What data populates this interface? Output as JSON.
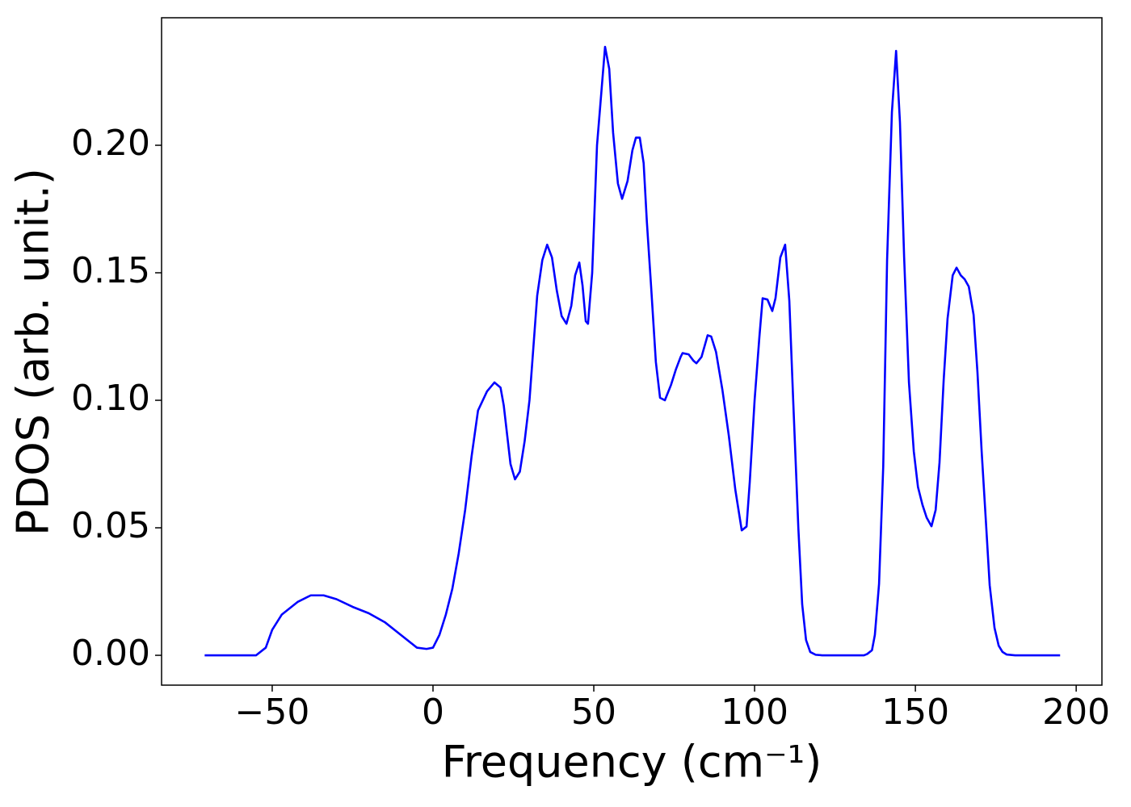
{
  "chart_data": {
    "type": "line",
    "xlabel": "Frequency (cm⁻¹)",
    "ylabel": "PDOS (arb. unit.)",
    "xlim": [
      -84.4,
      208.0
    ],
    "ylim": [
      -0.0117,
      0.25
    ],
    "xticks": [
      {
        "value": -50,
        "label": "−50"
      },
      0,
      50,
      100,
      150,
      200
    ],
    "yticks": [
      {
        "value": 0,
        "label": "0.00"
      },
      {
        "value": 0.05,
        "label": "0.05"
      },
      {
        "value": 0.1,
        "label": "0.10"
      },
      {
        "value": 0.15,
        "label": "0.15"
      },
      {
        "value": 0.2,
        "label": "0.20"
      }
    ],
    "grid": false,
    "series": [
      {
        "name": "PDOS",
        "color": "#0000ff",
        "x": [
          -71,
          -55,
          -52,
          -50,
          -47,
          -42,
          -38,
          -34,
          -30,
          -25,
          -20,
          -15,
          -10,
          -5,
          -2,
          0,
          2,
          4,
          6,
          8,
          10,
          12,
          14,
          16.8,
          19.1,
          21,
          22,
          24.1,
          25.5,
          27,
          28.5,
          30,
          32.4,
          34,
          35.5,
          37,
          38.5,
          40,
          41.5,
          43,
          44.2,
          45.5,
          46.5,
          47.5,
          48.2,
          49.5,
          51,
          52.3,
          53.5,
          54.8,
          56,
          57.5,
          58.8,
          60.5,
          62,
          63.1,
          64.3,
          65.5,
          66.5,
          67.8,
          69.3,
          70.6,
          72.1,
          74,
          75.5,
          77,
          77.6,
          79.5,
          81,
          81.9,
          83.5,
          85.4,
          86.5,
          88,
          90,
          92,
          94,
          96,
          97.5,
          98.5,
          100,
          101.5,
          102.5,
          104,
          105.5,
          106.5,
          108,
          109.5,
          110.8,
          112,
          113.6,
          114.8,
          116,
          117.3,
          119,
          121,
          134,
          135,
          136.5,
          137.4,
          138.7,
          140,
          141.2,
          142.7,
          144,
          145.2,
          146.5,
          148,
          149.5,
          150.8,
          152.2,
          153.5,
          155,
          156.3,
          157.5,
          158.8,
          160,
          161.6,
          162.8,
          164.1,
          165.3,
          166.6,
          168.1,
          169.3,
          170.6,
          171.9,
          173.1,
          174.6,
          175.9,
          177.1,
          178.4,
          181,
          195
        ],
        "values": [
          0,
          0,
          0.003,
          0.01,
          0.016,
          0.021,
          0.0235,
          0.0235,
          0.022,
          0.019,
          0.0165,
          0.013,
          0.008,
          0.003,
          0.0025,
          0.003,
          0.008,
          0.016,
          0.026,
          0.04,
          0.057,
          0.078,
          0.096,
          0.1035,
          0.107,
          0.105,
          0.098,
          0.075,
          0.069,
          0.072,
          0.084,
          0.1,
          0.141,
          0.155,
          0.161,
          0.156,
          0.143,
          0.133,
          0.13,
          0.137,
          0.149,
          0.154,
          0.145,
          0.131,
          0.13,
          0.15,
          0.2,
          0.22,
          0.2386,
          0.23,
          0.205,
          0.185,
          0.179,
          0.186,
          0.198,
          0.203,
          0.203,
          0.193,
          0.17,
          0.145,
          0.115,
          0.101,
          0.1,
          0.106,
          0.112,
          0.117,
          0.1185,
          0.118,
          0.1155,
          0.1145,
          0.117,
          0.1255,
          0.125,
          0.119,
          0.104,
          0.086,
          0.065,
          0.049,
          0.0505,
          0.068,
          0.1,
          0.125,
          0.14,
          0.1395,
          0.135,
          0.14,
          0.156,
          0.161,
          0.139,
          0.1,
          0.05,
          0.02,
          0.006,
          0.0013,
          0.0002,
          0,
          0,
          0.0005,
          0.002,
          0.008,
          0.028,
          0.074,
          0.155,
          0.213,
          0.237,
          0.209,
          0.156,
          0.107,
          0.08,
          0.066,
          0.059,
          0.054,
          0.0506,
          0.057,
          0.0756,
          0.108,
          0.132,
          0.149,
          0.152,
          0.149,
          0.1475,
          0.1446,
          0.1335,
          0.111,
          0.08,
          0.053,
          0.0275,
          0.0108,
          0.0038,
          0.0013,
          0.0003,
          0,
          0
        ]
      }
    ]
  }
}
